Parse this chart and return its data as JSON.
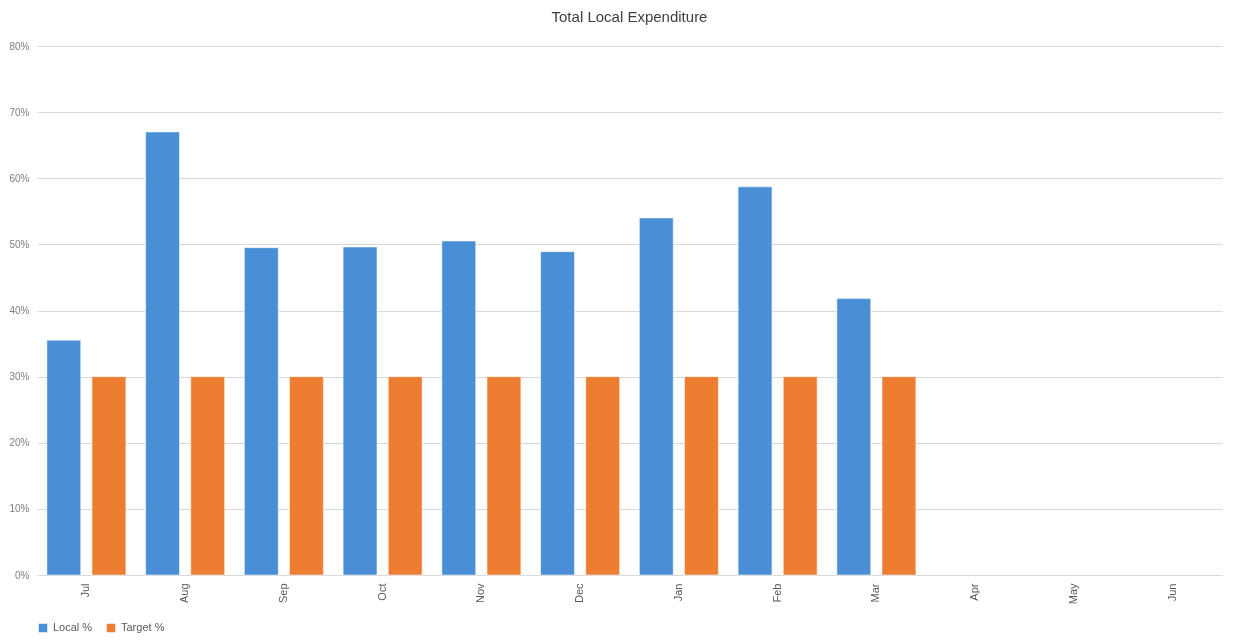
{
  "chart_data": {
    "type": "bar",
    "title": "Total Local Expenditure",
    "categories": [
      "Jul",
      "Aug",
      "Sep",
      "Oct",
      "Nov",
      "Dec",
      "Jan",
      "Feb",
      "Mar",
      "Apr",
      "May",
      "Jun"
    ],
    "series": [
      {
        "name": "Local %",
        "color": "#4a8fd6",
        "values": [
          35.5,
          67,
          49.5,
          49.6,
          50.5,
          48.9,
          54,
          58.7,
          41.8,
          null,
          null,
          null
        ]
      },
      {
        "name": "Target %",
        "color": "#ed7d31",
        "values": [
          30,
          30,
          30,
          30,
          30,
          30,
          30,
          30,
          30,
          null,
          null,
          null
        ]
      }
    ],
    "ylim": [
      0,
      80
    ],
    "yticks": [
      {
        "value": 0,
        "label": "0%"
      },
      {
        "value": 10,
        "label": "10%"
      },
      {
        "value": 20,
        "label": "20%"
      },
      {
        "value": 30,
        "label": "30%"
      },
      {
        "value": 40,
        "label": "40%"
      },
      {
        "value": 50,
        "label": "50%"
      },
      {
        "value": 60,
        "label": "60%"
      },
      {
        "value": 70,
        "label": "70%"
      },
      {
        "value": 80,
        "label": "80%"
      }
    ],
    "grid": "y",
    "legend": "bottom"
  }
}
